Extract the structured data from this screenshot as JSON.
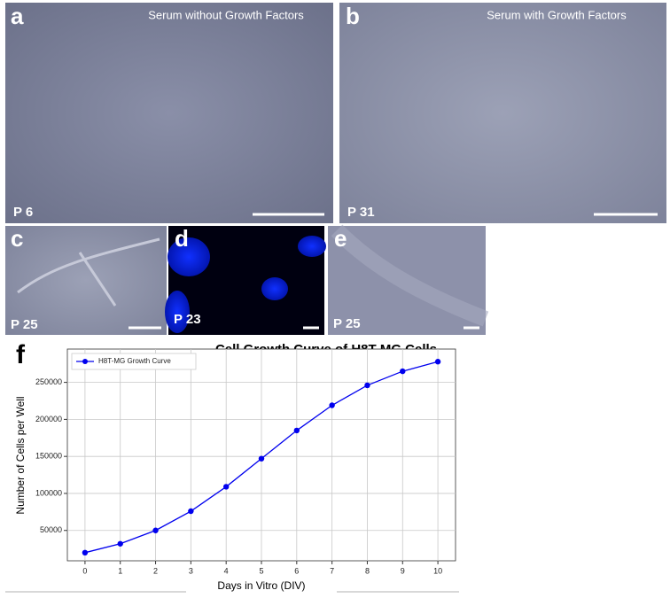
{
  "panels": [
    {
      "letter": "a",
      "caption": "Serum without Growth Factors",
      "passage": "P 6"
    },
    {
      "letter": "b",
      "caption": "Serum with Growth Factors",
      "passage": "P 31"
    },
    {
      "letter": "c",
      "passage": "P 25"
    },
    {
      "letter": "d",
      "passage": "P 23"
    },
    {
      "letter": "e",
      "passage": "P 25"
    }
  ],
  "chart_panel": {
    "letter": "f"
  },
  "chart_data": {
    "type": "line",
    "title": "Cell Growth Curve of H8T-MG Cells",
    "x_label": "Days in Vitro (DIV)",
    "y_label": "Number of Cells per Well",
    "x": [
      0,
      1,
      2,
      3,
      4,
      5,
      6,
      7,
      8,
      9,
      10
    ],
    "series": [
      {
        "name": "H8T-MG Growth Curve",
        "color": "#0000ee",
        "values": [
          20000,
          32000,
          50000,
          76000,
          109000,
          147000,
          185000,
          219000,
          246000,
          265000,
          278000
        ]
      }
    ],
    "xlim": [
      -0.5,
      10.5
    ],
    "ylim": [
      9000,
      295000
    ],
    "xticks": [
      0,
      1,
      2,
      3,
      4,
      5,
      6,
      7,
      8,
      9,
      10
    ],
    "yticks": [
      50000,
      100000,
      150000,
      200000,
      250000
    ],
    "grid": true,
    "legend": "upper left"
  }
}
